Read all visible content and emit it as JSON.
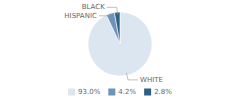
{
  "chart_data": {
    "type": "pie",
    "categories": [
      "WHITE",
      "HISPANIC",
      "BLACK"
    ],
    "values": [
      93.0,
      4.2,
      2.8
    ],
    "value_labels": [
      "93.0%",
      "4.2%",
      "2.8%"
    ],
    "colors": [
      "#dce6f0",
      "#6d93b8",
      "#2e5f85"
    ],
    "legend": "bottom"
  }
}
